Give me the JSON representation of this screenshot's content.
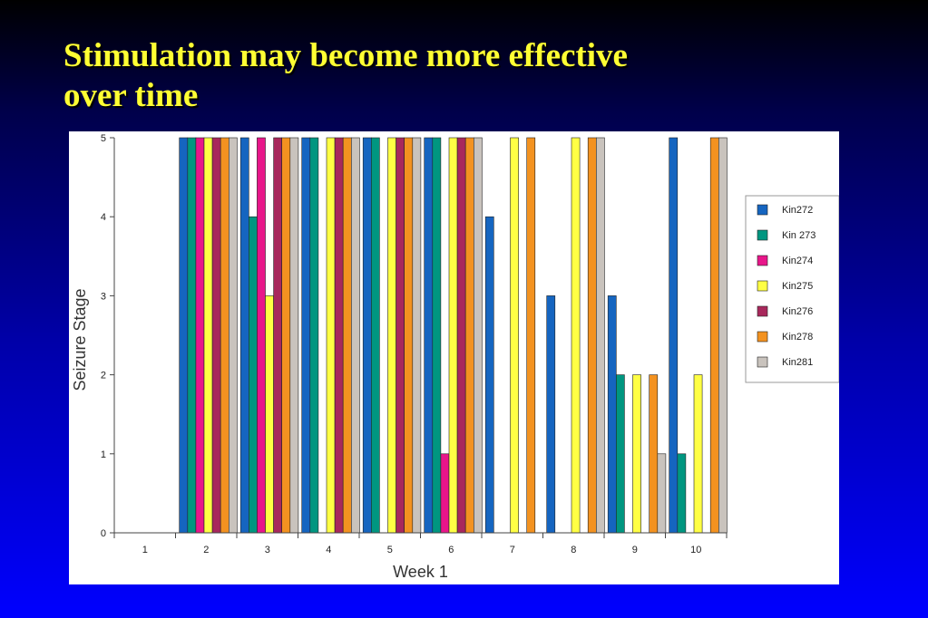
{
  "slide": {
    "title_lines": [
      "Stimulation may become more effective",
      "over time"
    ],
    "title_color": "#ffff33"
  },
  "chart_data": {
    "type": "bar",
    "xlabel": "Week 1",
    "ylabel": "Seizure Stage",
    "categories": [
      "1",
      "2",
      "3",
      "4",
      "5",
      "6",
      "7",
      "8",
      "9",
      "10"
    ],
    "ylim": [
      0,
      5
    ],
    "yticks": [
      "0",
      "1",
      "2",
      "3",
      "4",
      "5"
    ],
    "grid": false,
    "legend_position": "right",
    "series": [
      {
        "name": "Kin272",
        "color": "#1565c0",
        "values": [
          0,
          5,
          5,
          5,
          5,
          5,
          4,
          3,
          3,
          5
        ]
      },
      {
        "name": "Kin 273",
        "color": "#009680",
        "values": [
          0,
          5,
          4,
          5,
          5,
          5,
          0,
          0,
          2,
          1
        ]
      },
      {
        "name": "Kin274",
        "color": "#e8168a",
        "values": [
          0,
          5,
          5,
          0,
          0,
          1,
          0,
          0,
          0,
          0
        ]
      },
      {
        "name": "Kin275",
        "color": "#ffff44",
        "values": [
          0,
          5,
          3,
          5,
          5,
          5,
          5,
          5,
          2,
          2
        ]
      },
      {
        "name": "Kin276",
        "color": "#a8285c",
        "values": [
          0,
          5,
          5,
          5,
          5,
          5,
          0,
          0,
          0,
          0
        ]
      },
      {
        "name": "Kin278",
        "color": "#f39220",
        "values": [
          0,
          5,
          5,
          5,
          5,
          5,
          5,
          5,
          2,
          5
        ]
      },
      {
        "name": "Kin281",
        "color": "#c9c3bd",
        "values": [
          0,
          5,
          5,
          5,
          5,
          5,
          0,
          5,
          1,
          5
        ]
      }
    ]
  }
}
